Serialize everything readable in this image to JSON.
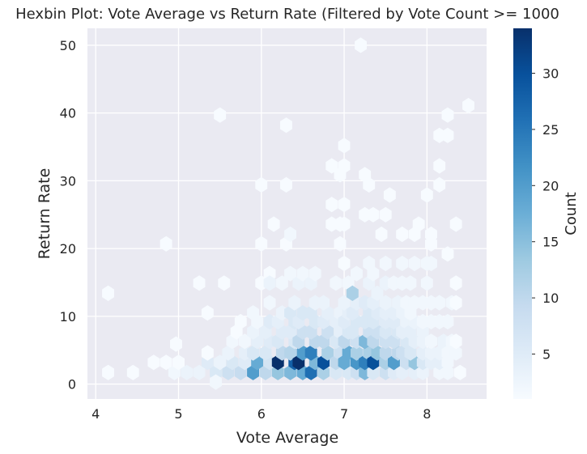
{
  "chart_data": {
    "type": "hexbin",
    "title": "Hexbin Plot: Vote Average vs Return Rate (Filtered by Vote Count >= 1000",
    "xlabel": "Vote Average",
    "ylabel": "Return Rate",
    "xlim": [
      3.9,
      8.72
    ],
    "ylim": [
      -2.2,
      52.5
    ],
    "xticks": [
      4,
      5,
      6,
      7,
      8
    ],
    "yticks": [
      0,
      10,
      20,
      30,
      40,
      50
    ],
    "grid": true,
    "colormap": "Blues",
    "colorbar": {
      "label": "Count",
      "min": 1,
      "max": 34,
      "ticks": [
        5,
        10,
        15,
        20,
        25,
        30
      ]
    },
    "cells": [
      [
        4.15,
        1.7,
        1
      ],
      [
        4.15,
        13.4,
        1
      ],
      [
        4.45,
        1.7,
        1
      ],
      [
        4.7,
        3.2,
        1
      ],
      [
        4.85,
        3.2,
        1
      ],
      [
        4.85,
        20.7,
        1
      ],
      [
        4.95,
        1.7,
        2
      ],
      [
        5.0,
        3.2,
        1
      ],
      [
        4.97,
        5.9,
        1
      ],
      [
        5.1,
        1.7,
        3
      ],
      [
        5.25,
        1.7,
        3
      ],
      [
        5.35,
        3.2,
        5
      ],
      [
        5.25,
        14.9,
        1
      ],
      [
        5.35,
        10.5,
        1
      ],
      [
        5.35,
        4.6,
        1
      ],
      [
        5.45,
        1.7,
        6
      ],
      [
        5.5,
        3.2,
        3
      ],
      [
        5.45,
        0.3,
        2
      ],
      [
        5.5,
        39.7,
        1
      ],
      [
        5.55,
        14.9,
        1
      ],
      [
        5.6,
        1.7,
        8
      ],
      [
        5.65,
        3.2,
        6
      ],
      [
        5.6,
        4.6,
        3
      ],
      [
        5.65,
        6.3,
        2
      ],
      [
        5.7,
        7.7,
        1
      ],
      [
        5.75,
        9.2,
        1
      ],
      [
        5.75,
        1.7,
        9
      ],
      [
        5.8,
        3.2,
        5
      ],
      [
        5.8,
        4.6,
        4
      ],
      [
        5.8,
        6.3,
        2
      ],
      [
        5.9,
        1.7,
        20
      ],
      [
        5.95,
        3.2,
        18
      ],
      [
        5.9,
        4.6,
        6
      ],
      [
        5.95,
        6.3,
        4
      ],
      [
        5.9,
        7.7,
        3
      ],
      [
        5.95,
        9.2,
        2
      ],
      [
        5.9,
        10.5,
        2
      ],
      [
        6.0,
        29.4,
        1
      ],
      [
        6.0,
        20.7,
        1
      ],
      [
        6.0,
        14.9,
        1
      ],
      [
        6.1,
        16.3,
        1
      ],
      [
        6.15,
        23.6,
        1
      ],
      [
        6.05,
        1.7,
        10
      ],
      [
        6.1,
        3.2,
        7
      ],
      [
        6.05,
        4.6,
        6
      ],
      [
        6.1,
        6.3,
        5
      ],
      [
        6.05,
        7.7,
        4
      ],
      [
        6.1,
        9.2,
        5
      ],
      [
        6.1,
        12.0,
        2
      ],
      [
        6.1,
        14.9,
        3
      ],
      [
        6.2,
        1.7,
        14
      ],
      [
        6.2,
        3.2,
        34
      ],
      [
        6.25,
        4.6,
        10
      ],
      [
        6.2,
        6.3,
        6
      ],
      [
        6.25,
        7.7,
        5
      ],
      [
        6.2,
        9.2,
        4
      ],
      [
        6.25,
        10.5,
        3
      ],
      [
        6.25,
        14.9,
        2
      ],
      [
        6.3,
        38.2,
        1
      ],
      [
        6.3,
        29.4,
        1
      ],
      [
        6.3,
        20.7,
        1
      ],
      [
        6.35,
        22.1,
        2
      ],
      [
        6.35,
        1.7,
        16
      ],
      [
        6.4,
        3.2,
        28
      ],
      [
        6.35,
        4.6,
        11
      ],
      [
        6.4,
        6.3,
        6
      ],
      [
        6.35,
        7.7,
        5
      ],
      [
        6.4,
        9.2,
        6
      ],
      [
        6.35,
        10.5,
        6
      ],
      [
        6.4,
        12.0,
        3
      ],
      [
        6.35,
        16.3,
        2
      ],
      [
        6.5,
        1.7,
        18
      ],
      [
        6.45,
        3.2,
        34
      ],
      [
        6.5,
        4.6,
        20
      ],
      [
        6.45,
        6.3,
        10
      ],
      [
        6.5,
        7.7,
        8
      ],
      [
        6.45,
        9.2,
        5
      ],
      [
        6.5,
        10.5,
        6
      ],
      [
        6.45,
        14.9,
        3
      ],
      [
        6.5,
        16.3,
        2
      ],
      [
        6.6,
        1.7,
        26
      ],
      [
        6.65,
        3.2,
        16
      ],
      [
        6.6,
        4.6,
        24
      ],
      [
        6.65,
        6.3,
        10
      ],
      [
        6.6,
        7.7,
        8
      ],
      [
        6.65,
        9.2,
        6
      ],
      [
        6.6,
        10.5,
        6
      ],
      [
        6.65,
        12.0,
        3
      ],
      [
        6.6,
        14.9,
        3
      ],
      [
        6.65,
        16.3,
        2
      ],
      [
        6.75,
        1.7,
        12
      ],
      [
        6.75,
        3.2,
        30
      ],
      [
        6.8,
        4.6,
        12
      ],
      [
        6.75,
        6.3,
        10
      ],
      [
        6.8,
        7.7,
        8
      ],
      [
        6.75,
        9.2,
        5
      ],
      [
        6.8,
        10.5,
        4
      ],
      [
        6.75,
        12.0,
        3
      ],
      [
        6.9,
        1.7,
        6
      ],
      [
        6.9,
        3.2,
        10
      ],
      [
        6.95,
        4.6,
        8
      ],
      [
        6.9,
        6.3,
        6
      ],
      [
        6.95,
        7.7,
        4
      ],
      [
        6.9,
        9.2,
        4
      ],
      [
        6.95,
        10.5,
        3
      ],
      [
        6.9,
        14.9,
        2
      ],
      [
        6.95,
        20.7,
        1
      ],
      [
        6.85,
        26.5,
        1
      ],
      [
        6.85,
        32.2,
        1
      ],
      [
        6.85,
        23.6,
        1
      ],
      [
        6.95,
        23.6,
        1
      ],
      [
        6.95,
        30.9,
        1
      ],
      [
        7.05,
        1.7,
        6
      ],
      [
        7.0,
        3.2,
        18
      ],
      [
        7.05,
        4.6,
        18
      ],
      [
        7.0,
        6.3,
        10
      ],
      [
        7.05,
        7.7,
        6
      ],
      [
        7.0,
        9.2,
        5
      ],
      [
        7.05,
        10.5,
        4
      ],
      [
        7.0,
        12.0,
        3
      ],
      [
        7.05,
        14.9,
        2
      ],
      [
        7.0,
        17.8,
        1
      ],
      [
        7.0,
        23.6,
        1
      ],
      [
        7.0,
        26.5,
        1
      ],
      [
        7.0,
        32.2,
        1
      ],
      [
        7.0,
        35.2,
        1
      ],
      [
        7.15,
        1.7,
        8
      ],
      [
        7.15,
        3.2,
        21
      ],
      [
        7.15,
        4.6,
        12
      ],
      [
        7.15,
        6.3,
        8
      ],
      [
        7.1,
        7.7,
        6
      ],
      [
        7.15,
        9.2,
        6
      ],
      [
        7.1,
        10.5,
        5
      ],
      [
        7.15,
        12.0,
        4
      ],
      [
        7.1,
        13.4,
        12
      ],
      [
        7.15,
        16.3,
        2
      ],
      [
        7.2,
        50.0,
        1
      ],
      [
        7.25,
        1.7,
        16
      ],
      [
        7.25,
        3.2,
        24
      ],
      [
        7.3,
        4.6,
        12
      ],
      [
        7.25,
        6.3,
        16
      ],
      [
        7.3,
        7.7,
        8
      ],
      [
        7.25,
        9.2,
        6
      ],
      [
        7.3,
        10.5,
        6
      ],
      [
        7.25,
        12.0,
        5
      ],
      [
        7.3,
        14.9,
        3
      ],
      [
        7.3,
        17.8,
        2
      ],
      [
        7.25,
        25.0,
        1
      ],
      [
        7.25,
        30.9,
        1
      ],
      [
        7.35,
        1.7,
        6
      ],
      [
        7.35,
        3.2,
        30
      ],
      [
        7.4,
        4.6,
        14
      ],
      [
        7.35,
        6.3,
        10
      ],
      [
        7.4,
        7.7,
        8
      ],
      [
        7.35,
        9.2,
        6
      ],
      [
        7.4,
        10.5,
        5
      ],
      [
        7.35,
        12.0,
        4
      ],
      [
        7.4,
        13.4,
        3
      ],
      [
        7.35,
        16.3,
        2
      ],
      [
        7.35,
        25.0,
        1
      ],
      [
        7.3,
        29.4,
        1
      ],
      [
        7.5,
        1.7,
        8
      ],
      [
        7.5,
        3.2,
        12
      ],
      [
        7.5,
        4.6,
        10
      ],
      [
        7.5,
        6.3,
        8
      ],
      [
        7.5,
        7.7,
        6
      ],
      [
        7.5,
        9.2,
        5
      ],
      [
        7.5,
        10.5,
        4
      ],
      [
        7.5,
        12.0,
        3
      ],
      [
        7.5,
        14.9,
        3
      ],
      [
        7.5,
        17.8,
        2
      ],
      [
        7.45,
        22.1,
        1
      ],
      [
        7.5,
        25.0,
        1
      ],
      [
        7.6,
        1.7,
        5
      ],
      [
        7.6,
        3.2,
        20
      ],
      [
        7.65,
        4.6,
        10
      ],
      [
        7.6,
        6.3,
        8
      ],
      [
        7.65,
        7.7,
        6
      ],
      [
        7.6,
        9.2,
        5
      ],
      [
        7.6,
        10.5,
        4
      ],
      [
        7.65,
        12.0,
        3
      ],
      [
        7.6,
        14.9,
        2
      ],
      [
        7.55,
        27.9,
        1
      ],
      [
        7.7,
        1.7,
        4
      ],
      [
        7.75,
        3.2,
        8
      ],
      [
        7.7,
        4.6,
        8
      ],
      [
        7.75,
        6.3,
        6
      ],
      [
        7.7,
        7.7,
        4
      ],
      [
        7.75,
        9.2,
        3
      ],
      [
        7.7,
        10.5,
        3
      ],
      [
        7.75,
        12.0,
        2
      ],
      [
        7.7,
        14.9,
        2
      ],
      [
        7.7,
        17.8,
        2
      ],
      [
        7.7,
        22.1,
        1
      ],
      [
        7.85,
        1.7,
        4
      ],
      [
        7.85,
        3.2,
        14
      ],
      [
        7.8,
        4.6,
        6
      ],
      [
        7.85,
        6.3,
        4
      ],
      [
        7.8,
        7.7,
        4
      ],
      [
        7.85,
        9.2,
        3
      ],
      [
        7.8,
        10.5,
        2
      ],
      [
        7.85,
        12.0,
        2
      ],
      [
        7.8,
        14.9,
        2
      ],
      [
        7.85,
        17.8,
        2
      ],
      [
        7.85,
        22.1,
        1
      ],
      [
        7.9,
        23.6,
        1
      ],
      [
        7.95,
        1.7,
        3
      ],
      [
        7.95,
        3.2,
        6
      ],
      [
        7.95,
        4.6,
        4
      ],
      [
        7.95,
        6.3,
        3
      ],
      [
        7.95,
        7.7,
        3
      ],
      [
        7.95,
        9.2,
        2
      ],
      [
        7.95,
        12.0,
        2
      ],
      [
        8.0,
        14.9,
        2
      ],
      [
        8.0,
        17.8,
        2
      ],
      [
        8.0,
        27.9,
        1
      ],
      [
        8.05,
        3.2,
        4
      ],
      [
        8.05,
        4.6,
        3
      ],
      [
        8.05,
        6.3,
        2
      ],
      [
        8.05,
        9.2,
        2
      ],
      [
        8.05,
        12.0,
        2
      ],
      [
        8.05,
        17.8,
        2
      ],
      [
        8.05,
        20.7,
        1
      ],
      [
        8.05,
        22.1,
        1
      ],
      [
        8.15,
        1.7,
        2
      ],
      [
        8.15,
        3.2,
        4
      ],
      [
        8.15,
        4.6,
        3
      ],
      [
        8.2,
        6.3,
        3
      ],
      [
        8.15,
        9.2,
        2
      ],
      [
        8.15,
        12.0,
        2
      ],
      [
        8.15,
        29.4,
        1
      ],
      [
        8.15,
        32.2,
        1
      ],
      [
        8.15,
        36.7,
        1
      ],
      [
        8.25,
        1.7,
        2
      ],
      [
        8.25,
        3.2,
        2
      ],
      [
        8.25,
        4.6,
        2
      ],
      [
        8.3,
        6.3,
        2
      ],
      [
        8.25,
        9.2,
        2
      ],
      [
        8.3,
        12.0,
        2
      ],
      [
        8.25,
        19.2,
        1
      ],
      [
        8.25,
        36.7,
        1
      ],
      [
        8.25,
        39.7,
        1
      ],
      [
        8.35,
        4.6,
        2
      ],
      [
        8.35,
        6.3,
        1
      ],
      [
        8.35,
        12.0,
        1
      ],
      [
        8.35,
        14.9,
        1
      ],
      [
        8.35,
        23.6,
        1
      ],
      [
        8.4,
        1.7,
        1
      ],
      [
        8.5,
        41.1,
        1
      ]
    ]
  }
}
